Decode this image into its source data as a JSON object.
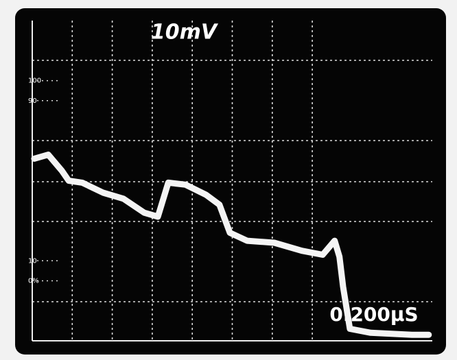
{
  "chart_data": {
    "type": "line",
    "title": "10mV",
    "annotation": "0.200μS",
    "x": [
      0.05,
      0.4,
      0.74,
      0.91,
      1.25,
      1.77,
      2.28,
      2.8,
      3.14,
      3.4,
      3.83,
      4.34,
      4.68,
      4.94,
      5.37,
      6.05,
      6.74,
      7.26,
      7.56,
      7.68,
      7.77,
      7.94,
      8.46,
      9.49,
      9.91
    ],
    "series": [
      {
        "color": "#f4f4f4",
        "values": [
          61,
          63,
          55,
          50,
          49,
          44,
          41,
          34,
          32,
          49,
          48,
          43,
          38,
          24,
          20,
          19,
          15,
          13,
          20,
          12,
          -3,
          -24,
          -26,
          -27,
          -27
        ]
      }
    ],
    "xlim": [
      0,
      10
    ],
    "ylim": [
      -30,
      130
    ],
    "yticks": [
      100,
      90,
      10,
      {
        "value": 0,
        "label": "0%"
      }
    ]
  }
}
